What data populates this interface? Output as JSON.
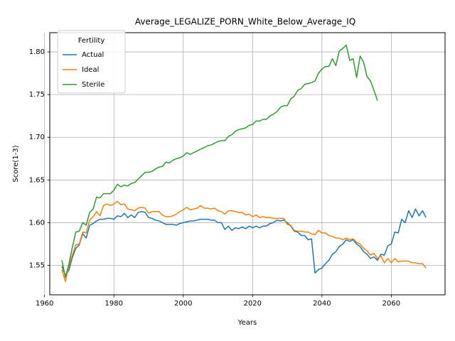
{
  "chart_data": {
    "type": "line",
    "title": "Average_LEGALIZE_PORN_White_Below_Average_IQ",
    "xlabel": "Years",
    "ylabel": "Score(1-3)",
    "xlim": [
      1961.5,
      2075.5
    ],
    "ylim": [
      1.5155,
      1.8225
    ],
    "xticks": [
      1960,
      1980,
      2000,
      2020,
      2040,
      2060
    ],
    "yticks": [
      1.55,
      1.6,
      1.65,
      1.7,
      1.75,
      1.8
    ],
    "ytick_labels": [
      "1.55",
      "1.60",
      "1.65",
      "1.70",
      "1.75",
      "1.80"
    ],
    "grid": true,
    "legend": {
      "title": "Fertility",
      "placement": "top-left"
    },
    "series": [
      {
        "name": "Actual",
        "color": "#1f77b4",
        "x": [
          1965,
          1966,
          1967,
          1968,
          1969,
          1970,
          1971,
          1972,
          1973,
          1974,
          1975,
          1976,
          1977,
          1978,
          1979,
          1980,
          1981,
          1982,
          1983,
          1984,
          1985,
          1986,
          1987,
          1988,
          1989,
          1990,
          1991,
          1992,
          1993,
          1994,
          1995,
          1996,
          1997,
          1998,
          1999,
          2000,
          2001,
          2002,
          2003,
          2004,
          2005,
          2006,
          2007,
          2008,
          2009,
          2010,
          2011,
          2012,
          2013,
          2014,
          2015,
          2016,
          2017,
          2018,
          2019,
          2020,
          2021,
          2022,
          2023,
          2024,
          2025,
          2026,
          2027,
          2028,
          2029,
          2030,
          2031,
          2032,
          2033,
          2034,
          2035,
          2036,
          2037,
          2038,
          2039,
          2040,
          2041,
          2042,
          2043,
          2044,
          2045,
          2046,
          2047,
          2048,
          2049,
          2050,
          2051,
          2052,
          2053,
          2054,
          2055,
          2056,
          2057,
          2058,
          2059,
          2060,
          2061,
          2062,
          2063,
          2064,
          2065,
          2066,
          2067,
          2068,
          2069,
          2070
        ],
        "values": [
          1.549,
          1.538,
          1.544,
          1.559,
          1.57,
          1.574,
          1.587,
          1.582,
          1.597,
          1.599,
          1.602,
          1.604,
          1.604,
          1.605,
          1.605,
          1.604,
          1.608,
          1.607,
          1.611,
          1.606,
          1.609,
          1.606,
          1.612,
          1.613,
          1.612,
          1.606,
          1.605,
          1.603,
          1.602,
          1.6,
          1.598,
          1.598,
          1.598,
          1.597,
          1.599,
          1.6,
          1.601,
          1.602,
          1.602,
          1.603,
          1.604,
          1.604,
          1.604,
          1.603,
          1.603,
          1.6,
          1.6,
          1.592,
          1.596,
          1.591,
          1.594,
          1.593,
          1.595,
          1.593,
          1.596,
          1.594,
          1.596,
          1.594,
          1.596,
          1.596,
          1.599,
          1.6,
          1.603,
          1.602,
          1.603,
          1.6,
          1.596,
          1.59,
          1.589,
          1.585,
          1.585,
          1.58,
          1.581,
          1.541,
          1.545,
          1.547,
          1.552,
          1.556,
          1.563,
          1.566,
          1.572,
          1.575,
          1.58,
          1.578,
          1.58,
          1.575,
          1.572,
          1.566,
          1.563,
          1.558,
          1.56,
          1.556,
          1.563,
          1.562,
          1.573,
          1.575,
          1.589,
          1.588,
          1.604,
          1.6,
          1.614,
          1.606,
          1.616,
          1.608,
          1.614,
          1.606
        ]
      },
      {
        "name": "Ideal",
        "color": "#ff7f0e",
        "x": [
          1965,
          1966,
          1967,
          1968,
          1969,
          1970,
          1971,
          1972,
          1973,
          1974,
          1975,
          1976,
          1977,
          1978,
          1979,
          1980,
          1981,
          1982,
          1983,
          1984,
          1985,
          1986,
          1987,
          1988,
          1989,
          1990,
          1991,
          1992,
          1993,
          1994,
          1995,
          1996,
          1997,
          1998,
          1999,
          2000,
          2001,
          2002,
          2003,
          2004,
          2005,
          2006,
          2007,
          2008,
          2009,
          2010,
          2011,
          2012,
          2013,
          2014,
          2015,
          2016,
          2017,
          2018,
          2019,
          2020,
          2021,
          2022,
          2023,
          2024,
          2025,
          2026,
          2027,
          2028,
          2029,
          2030,
          2031,
          2032,
          2033,
          2034,
          2035,
          2036,
          2037,
          2038,
          2039,
          2040,
          2041,
          2042,
          2043,
          2044,
          2045,
          2046,
          2047,
          2048,
          2049,
          2050,
          2051,
          2052,
          2053,
          2054,
          2055,
          2056,
          2057,
          2058,
          2059,
          2060,
          2061,
          2062,
          2063,
          2064,
          2065,
          2066,
          2067,
          2068,
          2069,
          2070
        ],
        "values": [
          1.545,
          1.531,
          1.549,
          1.562,
          1.574,
          1.575,
          1.589,
          1.588,
          1.603,
          1.607,
          1.613,
          1.608,
          1.62,
          1.622,
          1.62,
          1.622,
          1.625,
          1.621,
          1.622,
          1.616,
          1.615,
          1.614,
          1.617,
          1.618,
          1.617,
          1.611,
          1.613,
          1.613,
          1.613,
          1.609,
          1.607,
          1.607,
          1.608,
          1.61,
          1.613,
          1.615,
          1.618,
          1.615,
          1.616,
          1.617,
          1.62,
          1.617,
          1.617,
          1.616,
          1.617,
          1.614,
          1.613,
          1.61,
          1.614,
          1.614,
          1.613,
          1.612,
          1.612,
          1.609,
          1.61,
          1.607,
          1.609,
          1.606,
          1.607,
          1.606,
          1.606,
          1.605,
          1.605,
          1.605,
          1.605,
          1.598,
          1.597,
          1.591,
          1.59,
          1.59,
          1.589,
          1.589,
          1.587,
          1.586,
          1.591,
          1.588,
          1.588,
          1.585,
          1.584,
          1.582,
          1.582,
          1.58,
          1.582,
          1.58,
          1.581,
          1.577,
          1.575,
          1.57,
          1.567,
          1.562,
          1.564,
          1.558,
          1.561,
          1.553,
          1.558,
          1.553,
          1.558,
          1.554,
          1.555,
          1.555,
          1.555,
          1.553,
          1.553,
          1.552,
          1.552,
          1.547
        ]
      },
      {
        "name": "Sterile",
        "color": "#2ca02c",
        "x": [
          1965,
          1966,
          1967,
          1968,
          1969,
          1970,
          1971,
          1972,
          1973,
          1974,
          1975,
          1976,
          1977,
          1978,
          1979,
          1980,
          1981,
          1982,
          1983,
          1984,
          1985,
          1986,
          1987,
          1988,
          1989,
          1990,
          1991,
          1992,
          1993,
          1994,
          1995,
          1996,
          1997,
          1998,
          1999,
          2000,
          2001,
          2002,
          2003,
          2004,
          2005,
          2006,
          2007,
          2008,
          2009,
          2010,
          2011,
          2012,
          2013,
          2014,
          2015,
          2016,
          2017,
          2018,
          2019,
          2020,
          2021,
          2022,
          2023,
          2024,
          2025,
          2026,
          2027,
          2028,
          2029,
          2030,
          2031,
          2032,
          2033,
          2034,
          2035,
          2036,
          2037,
          2038,
          2039,
          2040,
          2041,
          2042,
          2043,
          2044,
          2045,
          2046,
          2047,
          2048,
          2049,
          2050,
          2051,
          2052,
          2053,
          2054,
          2055,
          2056
        ],
        "values": [
          1.556,
          1.536,
          1.551,
          1.571,
          1.589,
          1.59,
          1.6,
          1.597,
          1.612,
          1.616,
          1.63,
          1.629,
          1.634,
          1.634,
          1.634,
          1.638,
          1.645,
          1.642,
          1.644,
          1.643,
          1.646,
          1.647,
          1.651,
          1.655,
          1.659,
          1.659,
          1.66,
          1.663,
          1.665,
          1.666,
          1.671,
          1.67,
          1.673,
          1.675,
          1.676,
          1.678,
          1.682,
          1.68,
          1.682,
          1.684,
          1.686,
          1.688,
          1.69,
          1.691,
          1.693,
          1.695,
          1.696,
          1.696,
          1.701,
          1.703,
          1.707,
          1.709,
          1.71,
          1.711,
          1.714,
          1.715,
          1.719,
          1.719,
          1.721,
          1.721,
          1.725,
          1.727,
          1.73,
          1.735,
          1.737,
          1.737,
          1.745,
          1.748,
          1.755,
          1.757,
          1.762,
          1.763,
          1.764,
          1.766,
          1.775,
          1.78,
          1.783,
          1.783,
          1.792,
          1.784,
          1.801,
          1.804,
          1.808,
          1.79,
          1.792,
          1.77,
          1.795,
          1.788,
          1.771,
          1.766,
          1.755,
          1.743
        ]
      }
    ]
  }
}
